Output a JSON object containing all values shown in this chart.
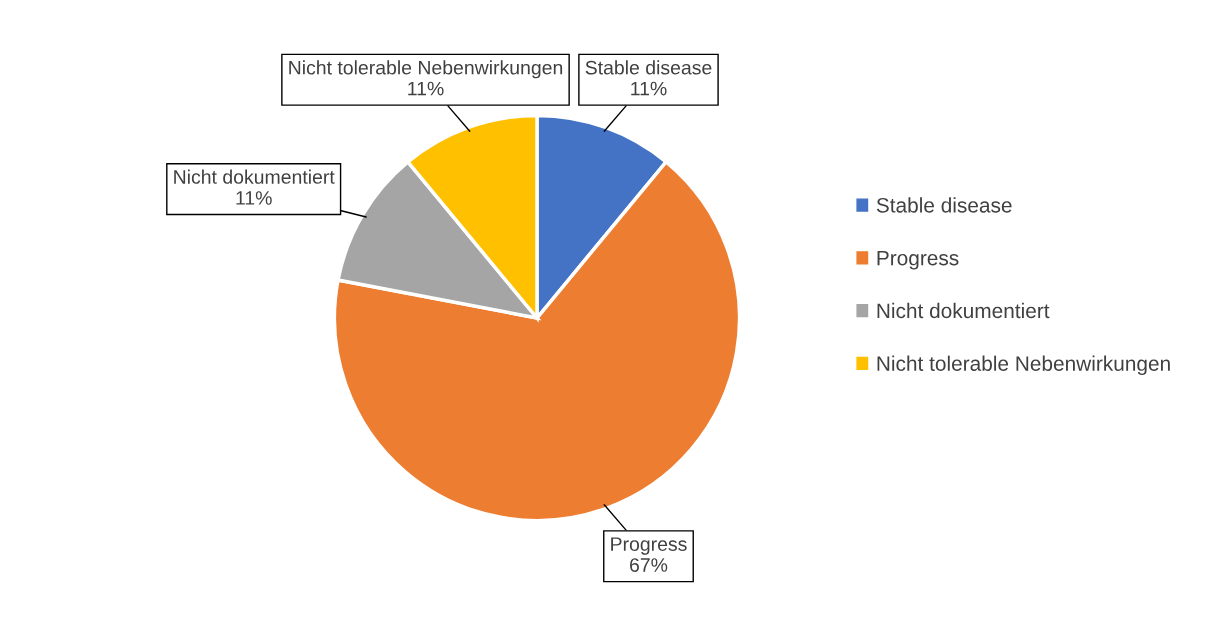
{
  "chart_data": {
    "type": "pie",
    "categories": [
      "Stable disease",
      "Progress",
      "Nicht dokumentiert",
      "Nicht tolerable Nebenwirkungen"
    ],
    "values": [
      11,
      67,
      11,
      11
    ],
    "value_labels": [
      "11%",
      "67%",
      "11%",
      "11%"
    ],
    "colors": [
      "#4472c4",
      "#ed7d31",
      "#a5a5a5",
      "#ffc000"
    ],
    "legend": "right"
  }
}
